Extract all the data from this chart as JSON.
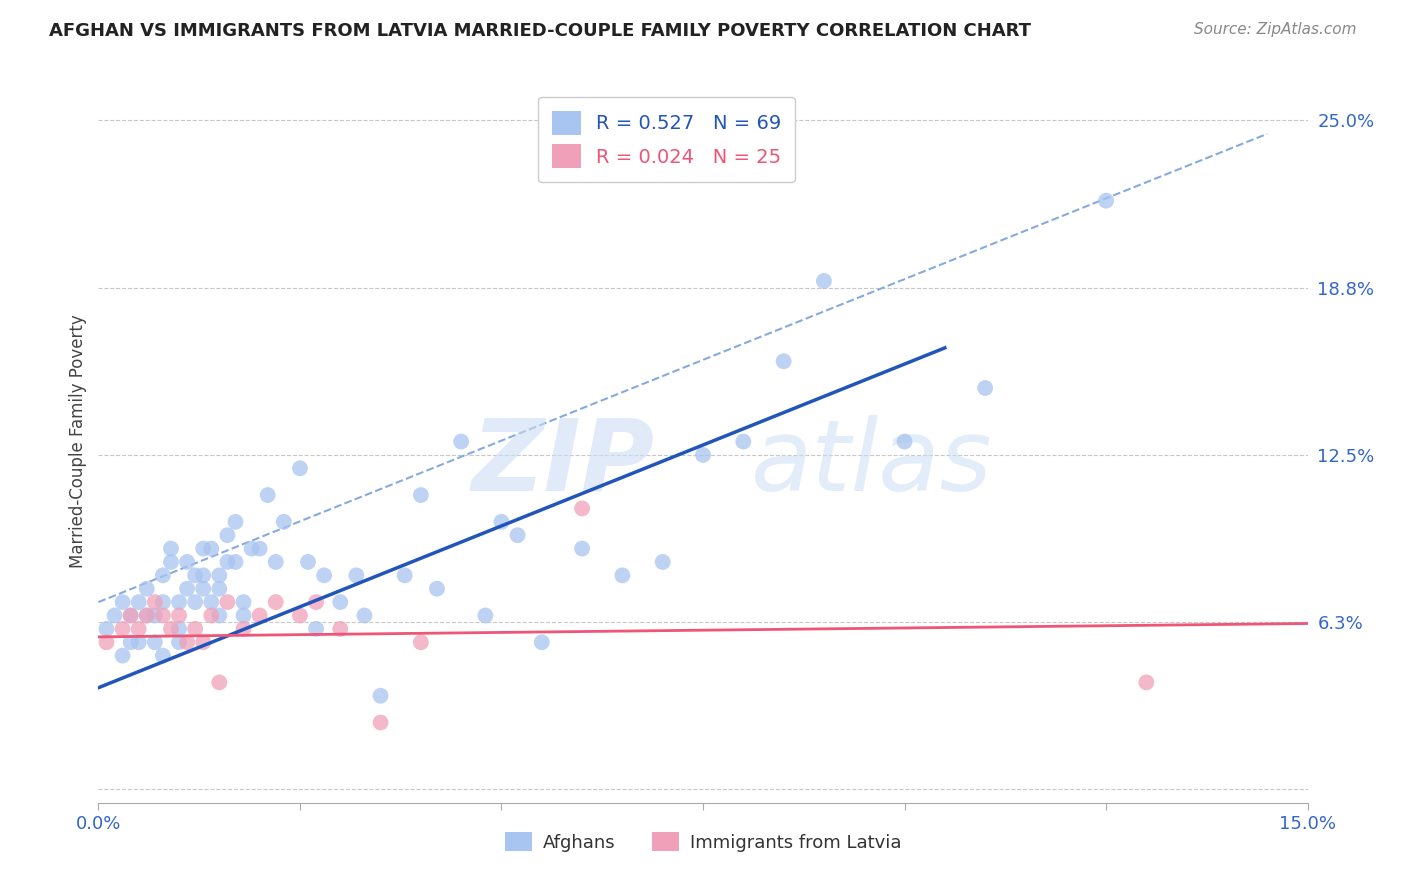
{
  "title": "AFGHAN VS IMMIGRANTS FROM LATVIA MARRIED-COUPLE FAMILY POVERTY CORRELATION CHART",
  "source": "Source: ZipAtlas.com",
  "ylabel": "Married-Couple Family Poverty",
  "xlim": [
    0.0,
    0.15
  ],
  "ylim": [
    -0.005,
    0.265
  ],
  "xticks": [
    0.0,
    0.025,
    0.05,
    0.075,
    0.1,
    0.125,
    0.15
  ],
  "xtick_labels": [
    "0.0%",
    "",
    "",
    "",
    "",
    "",
    "15.0%"
  ],
  "ytick_positions": [
    0.0,
    0.0625,
    0.125,
    0.1875,
    0.25
  ],
  "ytick_labels": [
    "",
    "6.3%",
    "12.5%",
    "18.8%",
    "25.0%"
  ],
  "legend_label1": "Afghans",
  "legend_label2": "Immigrants from Latvia",
  "background_color": "#ffffff",
  "grid_color": "#c8c8c8",
  "blue_scatter_color": "#a8c4f0",
  "pink_scatter_color": "#f0a0b8",
  "blue_line_color": "#2255bb",
  "pink_line_color": "#ee5577",
  "dashed_line_color": "#88aadd",
  "blue_R": 0.527,
  "blue_N": 69,
  "pink_R": 0.024,
  "pink_N": 25,
  "blue_scatter_x": [
    0.001,
    0.002,
    0.003,
    0.003,
    0.004,
    0.004,
    0.005,
    0.005,
    0.006,
    0.006,
    0.007,
    0.007,
    0.008,
    0.008,
    0.008,
    0.009,
    0.009,
    0.01,
    0.01,
    0.01,
    0.011,
    0.011,
    0.012,
    0.012,
    0.013,
    0.013,
    0.013,
    0.014,
    0.014,
    0.015,
    0.015,
    0.015,
    0.016,
    0.016,
    0.017,
    0.017,
    0.018,
    0.018,
    0.019,
    0.02,
    0.021,
    0.022,
    0.023,
    0.025,
    0.026,
    0.027,
    0.028,
    0.03,
    0.032,
    0.033,
    0.035,
    0.038,
    0.04,
    0.042,
    0.045,
    0.048,
    0.05,
    0.052,
    0.055,
    0.06,
    0.065,
    0.07,
    0.075,
    0.08,
    0.085,
    0.09,
    0.1,
    0.11,
    0.125
  ],
  "blue_scatter_y": [
    0.06,
    0.065,
    0.07,
    0.05,
    0.065,
    0.055,
    0.07,
    0.055,
    0.065,
    0.075,
    0.055,
    0.065,
    0.05,
    0.07,
    0.08,
    0.085,
    0.09,
    0.06,
    0.07,
    0.055,
    0.075,
    0.085,
    0.07,
    0.08,
    0.075,
    0.09,
    0.08,
    0.07,
    0.09,
    0.065,
    0.08,
    0.075,
    0.085,
    0.095,
    0.085,
    0.1,
    0.07,
    0.065,
    0.09,
    0.09,
    0.11,
    0.085,
    0.1,
    0.12,
    0.085,
    0.06,
    0.08,
    0.07,
    0.08,
    0.065,
    0.035,
    0.08,
    0.11,
    0.075,
    0.13,
    0.065,
    0.1,
    0.095,
    0.055,
    0.09,
    0.08,
    0.085,
    0.125,
    0.13,
    0.16,
    0.19,
    0.13,
    0.15,
    0.22
  ],
  "pink_scatter_x": [
    0.001,
    0.003,
    0.004,
    0.005,
    0.006,
    0.007,
    0.008,
    0.009,
    0.01,
    0.011,
    0.012,
    0.013,
    0.014,
    0.015,
    0.016,
    0.018,
    0.02,
    0.022,
    0.025,
    0.027,
    0.03,
    0.035,
    0.04,
    0.06,
    0.13
  ],
  "pink_scatter_y": [
    0.055,
    0.06,
    0.065,
    0.06,
    0.065,
    0.07,
    0.065,
    0.06,
    0.065,
    0.055,
    0.06,
    0.055,
    0.065,
    0.04,
    0.07,
    0.06,
    0.065,
    0.07,
    0.065,
    0.07,
    0.06,
    0.025,
    0.055,
    0.105,
    0.04
  ],
  "blue_trendline_x": [
    0.0,
    0.105
  ],
  "blue_trendline_y": [
    0.038,
    0.165
  ],
  "pink_trendline_x": [
    0.0,
    0.15
  ],
  "pink_trendline_y": [
    0.057,
    0.062
  ],
  "dashed_line_x": [
    0.0,
    0.145
  ],
  "dashed_line_y": [
    0.07,
    0.245
  ]
}
